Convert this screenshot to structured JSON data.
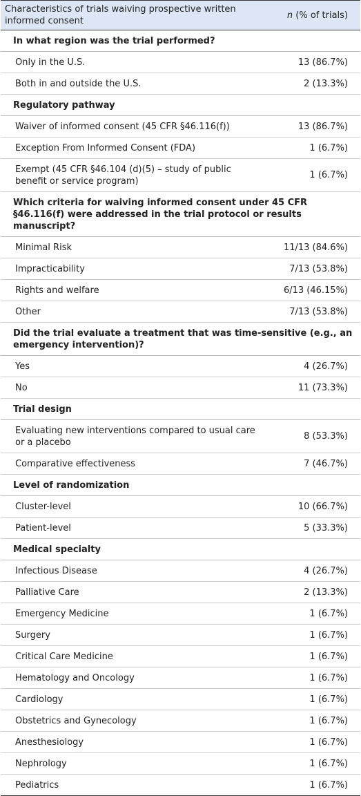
{
  "header": {
    "characteristic": "Characteristics of trials waiving prospective written informed consent",
    "count_symbol": "n",
    "count_unit": "(% of trials)"
  },
  "sections": [
    {
      "title": "In what region was the trial performed?",
      "rows": [
        [
          "Only in the U.S.",
          "13 (86.7%)"
        ],
        [
          "Both in and outside the U.S.",
          "2 (13.3%)"
        ]
      ]
    },
    {
      "title": "Regulatory pathway",
      "rows": [
        [
          "Waiver of informed consent (45 CFR §46.116(f))",
          "13 (86.7%)"
        ],
        [
          "Exception From Informed Consent (FDA)",
          "1 (6.7%)"
        ],
        [
          "Exempt (45 CFR §46.104 (d)(5) – study of public benefit or service program)",
          "1 (6.7%)"
        ]
      ]
    },
    {
      "title": "Which criteria for waiving informed consent under 45 CFR §46.116(f) were addressed in the trial protocol or results manuscript?",
      "rows": [
        [
          "Minimal Risk",
          "11/13 (84.6%)"
        ],
        [
          "Impracticability",
          "7/13 (53.8%)"
        ],
        [
          "Rights and welfare",
          "6/13 (46.15%)"
        ],
        [
          "Other",
          "7/13 (53.8%)"
        ]
      ]
    },
    {
      "title": "Did the trial evaluate a treatment that was time-sensitive (e.g., an emergency intervention)?",
      "rows": [
        [
          "Yes",
          "4 (26.7%)"
        ],
        [
          "No",
          "11 (73.3%)"
        ]
      ]
    },
    {
      "title": "Trial design",
      "rows": [
        [
          "Evaluating new interventions compared to usual care or a placebo",
          "8 (53.3%)"
        ],
        [
          "Comparative effectiveness",
          "7 (46.7%)"
        ]
      ]
    },
    {
      "title": "Level of randomization",
      "rows": [
        [
          "Cluster-level",
          "10 (66.7%)"
        ],
        [
          "Patient-level",
          "5 (33.3%)"
        ]
      ]
    },
    {
      "title": "Medical specialty",
      "rows": [
        [
          "Infectious Disease",
          "4 (26.7%)"
        ],
        [
          "Palliative Care",
          "2 (13.3%)"
        ],
        [
          "Emergency Medicine",
          "1 (6.7%)"
        ],
        [
          "Surgery",
          "1 (6.7%)"
        ],
        [
          "Critical Care Medicine",
          "1 (6.7%)"
        ],
        [
          "Hematology and Oncology",
          "1 (6.7%)"
        ],
        [
          "Cardiology",
          "1 (6.7%)"
        ],
        [
          "Obstetrics and Gynecology",
          "1 (6.7%)"
        ],
        [
          "Anesthesiology",
          "1 (6.7%)"
        ],
        [
          "Nephrology",
          "1 (6.7%)"
        ],
        [
          "Pediatrics",
          "1 (6.7%)"
        ]
      ]
    }
  ]
}
